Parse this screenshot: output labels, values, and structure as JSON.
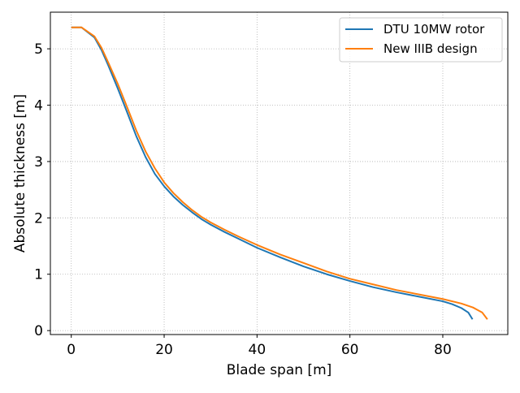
{
  "chart_data": {
    "type": "line",
    "title": "",
    "xlabel": "Blade span [m]",
    "ylabel": "Absolute thickness [m]",
    "xlim": [
      -4.5,
      94.0
    ],
    "ylim": [
      -0.07,
      5.65
    ],
    "xticks": [
      0,
      20,
      40,
      60,
      80
    ],
    "yticks": [
      0,
      1,
      2,
      3,
      4,
      5
    ],
    "grid": true,
    "legend_position": "top-right",
    "series": [
      {
        "name": "DTU 10MW rotor",
        "color": "#1f77b4",
        "x": [
          0,
          2.2,
          5,
          6.5,
          8,
          10,
          12,
          14,
          16,
          18,
          20,
          22,
          24,
          26,
          28,
          30,
          33,
          36,
          40,
          45,
          50,
          55,
          60,
          65,
          70,
          75,
          80,
          82,
          84,
          85.5,
          86.4
        ],
        "y": [
          5.38,
          5.38,
          5.2,
          4.98,
          4.7,
          4.3,
          3.88,
          3.45,
          3.08,
          2.78,
          2.56,
          2.38,
          2.23,
          2.1,
          1.98,
          1.88,
          1.75,
          1.63,
          1.47,
          1.3,
          1.14,
          1.0,
          0.88,
          0.77,
          0.68,
          0.6,
          0.52,
          0.47,
          0.4,
          0.32,
          0.2
        ]
      },
      {
        "name": "New IIIB design",
        "color": "#ff7f0e",
        "x": [
          0,
          2.2,
          5,
          6.5,
          8,
          10,
          12,
          14,
          16,
          18,
          20,
          22,
          24,
          26,
          28,
          30,
          33,
          36,
          40,
          45,
          50,
          55,
          60,
          65,
          70,
          75,
          80,
          84,
          86.5,
          88.5,
          89.6
        ],
        "y": [
          5.38,
          5.38,
          5.22,
          5.02,
          4.75,
          4.38,
          3.97,
          3.55,
          3.18,
          2.88,
          2.63,
          2.44,
          2.28,
          2.14,
          2.02,
          1.92,
          1.79,
          1.67,
          1.52,
          1.35,
          1.2,
          1.05,
          0.92,
          0.82,
          0.72,
          0.64,
          0.56,
          0.48,
          0.41,
          0.32,
          0.2
        ]
      }
    ]
  }
}
